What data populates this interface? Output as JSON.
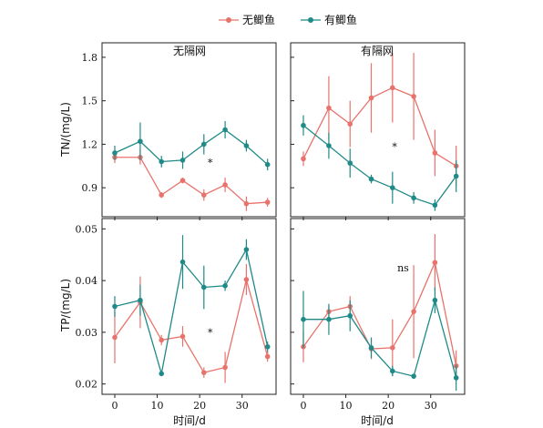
{
  "chart_data": {
    "type": "line",
    "colors": {
      "series1": "#e8736c",
      "series2": "#1f8a87"
    },
    "legend": {
      "placement": "top-center",
      "entries": [
        "无鲫鱼",
        "有鲫鱼"
      ]
    },
    "x": [
      0,
      6,
      11,
      16,
      21,
      26,
      31,
      36
    ],
    "xticks": [
      "0",
      "10",
      "20",
      "30"
    ],
    "xlabel": "时间/d",
    "xlim": [
      -3,
      38
    ],
    "panels": [
      {
        "title": "无隔网",
        "ylabel": "TN/(mg/L)",
        "ylim": [
          0.7,
          1.9
        ],
        "yticks": [
          "0.9",
          "1.2",
          "1.5",
          "1.8"
        ],
        "annotation": "*",
        "annotation_pos": [
          22.5,
          1.05
        ],
        "series": [
          {
            "name": "无鲫鱼",
            "values": [
              1.11,
              1.11,
              0.85,
              0.95,
              0.85,
              0.92,
              0.79,
              0.8
            ],
            "err": [
              0.04,
              0.05,
              0.02,
              0.02,
              0.04,
              0.05,
              0.05,
              0.03
            ]
          },
          {
            "name": "有鲫鱼",
            "values": [
              1.14,
              1.22,
              1.08,
              1.09,
              1.2,
              1.3,
              1.19,
              1.06
            ],
            "err": [
              0.05,
              0.13,
              0.04,
              0.06,
              0.07,
              0.06,
              0.04,
              0.04
            ]
          }
        ]
      },
      {
        "title": "有隔网",
        "ylabel": "",
        "ylim": [
          0.7,
          1.9
        ],
        "yticks": [
          "0.9",
          "1.2",
          "1.5",
          "1.8"
        ],
        "annotation": "*",
        "annotation_pos": [
          21.5,
          1.16
        ],
        "series": [
          {
            "name": "无鲫鱼",
            "values": [
              1.1,
              1.45,
              1.34,
              1.52,
              1.59,
              1.53,
              1.14,
              1.05
            ],
            "err": [
              0.05,
              0.22,
              0.16,
              0.24,
              0.24,
              0.3,
              0.16,
              0.14
            ]
          },
          {
            "name": "有鲫鱼",
            "values": [
              1.33,
              1.19,
              1.07,
              0.96,
              0.9,
              0.83,
              0.78,
              0.98
            ],
            "err": [
              0.07,
              0.09,
              0.1,
              0.03,
              0.11,
              0.04,
              0.04,
              0.11
            ]
          }
        ]
      },
      {
        "title": "",
        "ylabel": "TP/(mg/L)",
        "ylim": [
          0.018,
          0.052
        ],
        "yticks": [
          "0.02",
          "0.03",
          "0.04",
          "0.05"
        ],
        "annotation": "*",
        "annotation_pos": [
          22.5,
          0.0293
        ],
        "series": [
          {
            "name": "无鲫鱼",
            "values": [
              0.029,
              0.0358,
              0.0285,
              0.0292,
              0.0222,
              0.0232,
              0.0402,
              0.0253
            ],
            "err": [
              0.005,
              0.005,
              0.001,
              0.002,
              0.001,
              0.003,
              0.003,
              0.001
            ]
          },
          {
            "name": "有鲫鱼",
            "values": [
              0.035,
              0.0362,
              0.022,
              0.0436,
              0.0387,
              0.039,
              0.046,
              0.0272
            ],
            "err": [
              0.002,
              0.003,
              0.0005,
              0.0052,
              0.0042,
              0.001,
              0.002,
              0.001
            ]
          }
        ]
      },
      {
        "title": "",
        "ylabel": "",
        "ylim": [
          0.018,
          0.052
        ],
        "yticks": [
          "0.02",
          "0.03",
          "0.04",
          "0.05"
        ],
        "annotation": "ns",
        "annotation_pos": [
          23.5,
          0.0418
        ],
        "series": [
          {
            "name": "无鲫鱼",
            "values": [
              0.0272,
              0.034,
              0.035,
              0.0268,
              0.027,
              0.034,
              0.0435,
              0.0235
            ],
            "err": [
              0.003,
              0.001,
              0.002,
              0.002,
              0.0055,
              0.009,
              0.0055,
              0.003
            ]
          },
          {
            "name": "有鲫鱼",
            "values": [
              0.0325,
              0.0325,
              0.0332,
              0.027,
              0.0225,
              0.0215,
              0.0362,
              0.0212
            ],
            "err": [
              0.0055,
              0.003,
              0.003,
              0.002,
              0.001,
              0.0005,
              0.0025,
              0.0025
            ]
          }
        ]
      }
    ]
  }
}
